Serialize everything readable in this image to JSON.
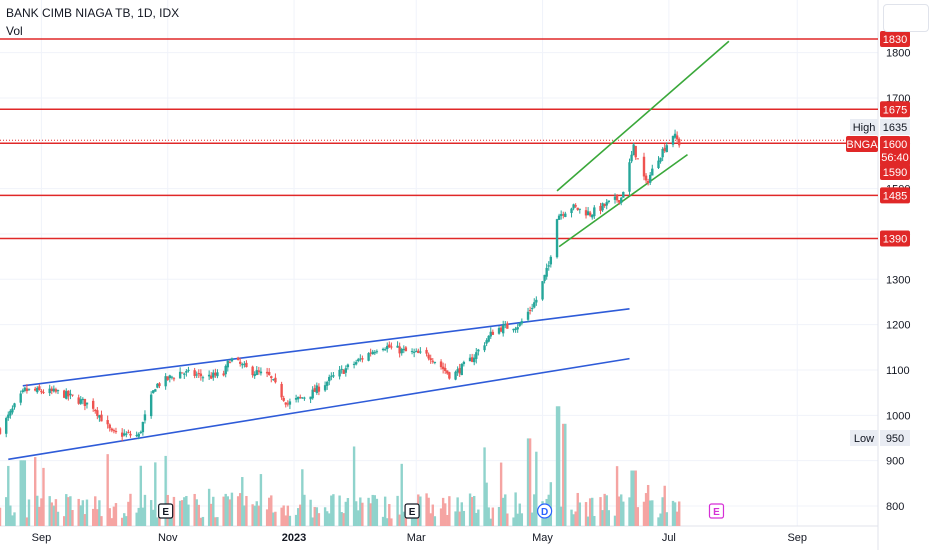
{
  "title": "BANK CIMB NIAGA TB, 1D, IDX",
  "volume_label": "Vol",
  "chart_data": {
    "type": "candlestick",
    "title": "BANK CIMB NIAGA TB, 1D, IDX",
    "ticker": "BNGA",
    "y_ticks": [
      800,
      900,
      1000,
      1100,
      1200,
      1300,
      1400,
      1500,
      1600,
      1700,
      1800
    ],
    "ylim": [
      760,
      1870
    ],
    "x_ticks": [
      "Sep",
      "Nov",
      "2023",
      "Mar",
      "May",
      "Jul",
      "Sep"
    ],
    "x_tick_dates": [
      "2022-09-01",
      "2022-11-01",
      "2023-01-01",
      "2023-03-01",
      "2023-05-01",
      "2023-07-01",
      "2023-09-01"
    ],
    "x_range": [
      "2022-08-12",
      "2023-10-10"
    ],
    "current_price": "1600",
    "countdown": "56:40",
    "price_tags": [
      {
        "label": "1830",
        "value": 1830
      },
      {
        "label": "1675",
        "value": 1675
      },
      {
        "label": "1485",
        "value": 1485
      },
      {
        "label": "1390",
        "value": 1390
      },
      {
        "label": "1590",
        "value": 1590
      }
    ],
    "horizontal_levels": [
      1830,
      1675,
      1600,
      1485,
      1390
    ],
    "high": {
      "label": "High",
      "value": "1635"
    },
    "low": {
      "label": "Low",
      "value": "950"
    },
    "events": [
      {
        "label": "E",
        "date": "2022-10-31"
      },
      {
        "label": "E",
        "date": "2023-02-27"
      },
      {
        "label": "D",
        "date": "2023-05-02"
      },
      {
        "label": "E",
        "date": "2023-07-24"
      }
    ],
    "trendlines": [
      {
        "name": "channel-upper-blue",
        "color": "#2e5bd8",
        "from": [
          "2022-08-23",
          1065
        ],
        "to": [
          "2023-06-12",
          1235
        ]
      },
      {
        "name": "channel-lower-blue",
        "color": "#2e5bd8",
        "from": [
          "2022-08-16",
          903
        ],
        "to": [
          "2023-06-12",
          1125
        ]
      },
      {
        "name": "channel-upper-green",
        "color": "#3aa83a",
        "from": [
          "2023-05-08",
          1495
        ],
        "to": [
          "2023-07-30",
          1825
        ]
      },
      {
        "name": "channel-lower-green",
        "color": "#3aa83a",
        "from": [
          "2023-05-09",
          1372
        ],
        "to": [
          "2023-07-10",
          1575
        ]
      }
    ],
    "price_path": [
      [
        "2022-08-12",
        968
      ],
      [
        "2022-08-24",
        1055
      ],
      [
        "2022-09-10",
        1050
      ],
      [
        "2022-09-26",
        1020
      ],
      [
        "2022-10-05",
        960
      ],
      [
        "2022-10-18",
        955
      ],
      [
        "2022-10-26",
        1065
      ],
      [
        "2022-11-07",
        1095
      ],
      [
        "2022-11-20",
        1085
      ],
      [
        "2022-11-28",
        1090
      ],
      [
        "2022-12-01",
        1125
      ],
      [
        "2022-12-10",
        1100
      ],
      [
        "2022-12-20",
        1085
      ],
      [
        "2022-12-29",
        1025
      ],
      [
        "2023-01-10",
        1050
      ],
      [
        "2023-01-20",
        1085
      ],
      [
        "2023-02-01",
        1120
      ],
      [
        "2023-02-12",
        1155
      ],
      [
        "2023-02-24",
        1140
      ],
      [
        "2023-03-08",
        1130
      ],
      [
        "2023-03-18",
        1085
      ],
      [
        "2023-03-28",
        1125
      ],
      [
        "2023-04-08",
        1190
      ],
      [
        "2023-04-20",
        1200
      ],
      [
        "2023-04-28",
        1255
      ],
      [
        "2023-05-04",
        1330
      ],
      [
        "2023-05-08",
        1440
      ],
      [
        "2023-05-15",
        1460
      ],
      [
        "2023-05-24",
        1445
      ],
      [
        "2023-06-03",
        1470
      ],
      [
        "2023-06-08",
        1480
      ],
      [
        "2023-06-14",
        1590
      ],
      [
        "2023-06-20",
        1510
      ],
      [
        "2023-06-26",
        1570
      ],
      [
        "2023-07-03",
        1620
      ],
      [
        "2023-07-06",
        1600
      ]
    ],
    "volume": {
      "shown": true,
      "peaks": [
        {
          "date": "2022-08-23",
          "level": 0.45
        },
        {
          "date": "2023-04-24",
          "level": 0.6
        },
        {
          "date": "2023-05-08",
          "level": 0.82
        },
        {
          "date": "2023-05-12",
          "level": 0.7
        },
        {
          "date": "2023-06-14",
          "level": 0.38
        }
      ]
    },
    "colors": {
      "up": "#26a69a",
      "down": "#ef5350",
      "level_line": "#e02828",
      "tag_background": "#e02828",
      "volume_up": "#8fd3cc",
      "volume_down": "#f5a4a2",
      "grid": "#f0f3fa"
    }
  }
}
